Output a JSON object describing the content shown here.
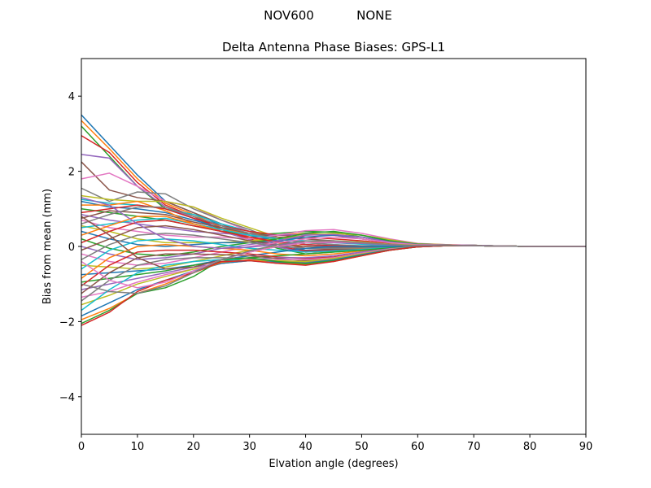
{
  "header": {
    "antenna": "NOV600",
    "radome": "NONE"
  },
  "chart_data": {
    "type": "line",
    "title": "Delta Antenna Phase Biases: GPS-L1",
    "xlabel": "Elvation angle (degrees)",
    "ylabel": "Bias from mean (mm)",
    "xlim": [
      0,
      90
    ],
    "ylim": [
      -5,
      5
    ],
    "xticks": [
      0,
      10,
      20,
      30,
      40,
      50,
      60,
      70,
      80,
      90
    ],
    "yticks": [
      -4,
      -2,
      0,
      2,
      4
    ],
    "ytick_labels": [
      "−4",
      "−2",
      "0",
      "2",
      "4"
    ],
    "grid": false,
    "legend": "none",
    "x": [
      0,
      5,
      10,
      15,
      20,
      25,
      30,
      35,
      40,
      45,
      50,
      55,
      60,
      65,
      70,
      75,
      80,
      85,
      90
    ],
    "colors": [
      "#1f77b4",
      "#ff7f0e",
      "#2ca02c",
      "#d62728",
      "#9467bd",
      "#8c564b",
      "#e377c2",
      "#7f7f7f",
      "#bcbd22",
      "#17becf"
    ],
    "series": [
      {
        "values": [
          3.5,
          2.7,
          1.9,
          1.2,
          0.9,
          0.55,
          0.3,
          0.05,
          -0.1,
          -0.1,
          -0.08,
          -0.03,
          0.0,
          0.02,
          0.02,
          0.01,
          0.0,
          0.0,
          0.0
        ]
      },
      {
        "values": [
          3.35,
          2.6,
          1.8,
          1.15,
          0.85,
          0.5,
          0.25,
          0.0,
          -0.15,
          -0.12,
          -0.08,
          -0.03,
          0.0,
          0.02,
          0.02,
          0.01,
          0.0,
          0.0,
          0.0
        ]
      },
      {
        "values": [
          3.2,
          2.4,
          1.6,
          1.0,
          0.75,
          0.45,
          0.2,
          -0.05,
          -0.2,
          -0.15,
          -0.1,
          -0.04,
          0.0,
          0.02,
          0.02,
          0.01,
          0.0,
          0.0,
          0.0
        ]
      },
      {
        "values": [
          2.95,
          2.5,
          1.7,
          1.1,
          0.8,
          0.45,
          0.2,
          0.0,
          -0.12,
          -0.1,
          -0.07,
          -0.03,
          0.0,
          0.02,
          0.02,
          0.01,
          0.0,
          0.0,
          0.0
        ]
      },
      {
        "values": [
          2.45,
          2.35,
          1.6,
          1.05,
          0.75,
          0.4,
          0.18,
          -0.02,
          -0.15,
          -0.12,
          -0.08,
          -0.03,
          0.0,
          0.02,
          0.02,
          0.01,
          0.0,
          0.0,
          0.0
        ]
      },
      {
        "values": [
          2.25,
          1.5,
          1.3,
          1.2,
          0.9,
          0.6,
          0.3,
          0.1,
          -0.05,
          -0.08,
          -0.06,
          -0.02,
          0.01,
          0.02,
          0.02,
          0.01,
          0.0,
          0.0,
          0.0
        ]
      },
      {
        "values": [
          1.8,
          1.95,
          1.6,
          1.2,
          1.05,
          0.7,
          0.4,
          0.1,
          0.0,
          -0.05,
          -0.05,
          -0.02,
          0.01,
          0.02,
          0.02,
          0.01,
          0.0,
          0.0,
          0.0
        ]
      },
      {
        "values": [
          1.55,
          1.2,
          1.45,
          1.4,
          1.0,
          0.7,
          0.45,
          0.15,
          0.05,
          0.0,
          -0.03,
          -0.01,
          0.01,
          0.02,
          0.02,
          0.01,
          0.0,
          0.0,
          0.0
        ]
      },
      {
        "values": [
          1.35,
          1.25,
          1.2,
          1.2,
          1.05,
          0.75,
          0.5,
          0.25,
          0.1,
          0.05,
          0.0,
          0.0,
          0.02,
          0.03,
          0.02,
          0.01,
          0.0,
          0.0,
          0.0
        ]
      },
      {
        "values": [
          1.25,
          1.15,
          1.1,
          1.0,
          0.85,
          0.6,
          0.4,
          0.2,
          0.1,
          0.05,
          0.0,
          0.0,
          0.02,
          0.03,
          0.02,
          0.01,
          0.0,
          0.0,
          0.0
        ]
      },
      {
        "values": [
          1.2,
          1.05,
          1.0,
          0.9,
          0.7,
          0.5,
          0.3,
          0.15,
          0.05,
          0.0,
          -0.02,
          0.0,
          0.02,
          0.03,
          0.02,
          0.01,
          0.0,
          0.0,
          0.0
        ]
      },
      {
        "values": [
          1.1,
          1.1,
          1.2,
          0.95,
          0.6,
          0.45,
          0.35,
          0.3,
          0.35,
          0.3,
          0.2,
          0.1,
          0.05,
          0.04,
          0.03,
          0.01,
          0.0,
          0.0,
          0.0
        ]
      },
      {
        "values": [
          1.0,
          0.9,
          0.8,
          0.7,
          0.55,
          0.4,
          0.3,
          0.35,
          0.4,
          0.38,
          0.25,
          0.12,
          0.05,
          0.04,
          0.03,
          0.01,
          0.0,
          0.0,
          0.0
        ]
      },
      {
        "values": [
          0.9,
          1.0,
          1.1,
          1.0,
          0.75,
          0.55,
          0.4,
          0.3,
          0.25,
          0.2,
          0.15,
          0.08,
          0.04,
          0.04,
          0.03,
          0.01,
          0.0,
          0.0,
          0.0
        ]
      },
      {
        "values": [
          0.85,
          0.7,
          0.6,
          0.5,
          0.4,
          0.35,
          0.3,
          0.3,
          0.32,
          0.3,
          0.2,
          0.1,
          0.04,
          0.04,
          0.03,
          0.01,
          0.0,
          0.0,
          0.0
        ]
      },
      {
        "values": [
          0.75,
          0.95,
          0.9,
          0.85,
          0.65,
          0.5,
          0.35,
          0.25,
          0.2,
          0.15,
          0.1,
          0.06,
          0.03,
          0.04,
          0.03,
          0.01,
          0.0,
          0.0,
          0.0
        ]
      },
      {
        "values": [
          0.7,
          0.5,
          0.4,
          0.3,
          0.25,
          0.25,
          0.2,
          0.3,
          0.42,
          0.45,
          0.35,
          0.2,
          0.08,
          0.05,
          0.03,
          0.01,
          0.0,
          0.0,
          0.0
        ]
      },
      {
        "values": [
          0.6,
          0.85,
          1.05,
          1.05,
          0.8,
          0.55,
          0.35,
          0.2,
          0.1,
          0.05,
          0.02,
          0.02,
          0.02,
          0.03,
          0.02,
          0.01,
          0.0,
          0.0,
          0.0
        ]
      },
      {
        "values": [
          0.55,
          0.4,
          0.2,
          0.1,
          0.1,
          0.1,
          0.15,
          0.2,
          0.3,
          0.35,
          0.3,
          0.18,
          0.07,
          0.05,
          0.03,
          0.01,
          0.0,
          0.0,
          0.0
        ]
      },
      {
        "values": [
          0.5,
          0.6,
          0.7,
          0.75,
          0.6,
          0.45,
          0.3,
          0.2,
          0.15,
          0.1,
          0.06,
          0.03,
          0.02,
          0.03,
          0.02,
          0.01,
          0.0,
          0.0,
          0.0
        ]
      },
      {
        "values": [
          0.4,
          0.2,
          0.05,
          0.0,
          0.05,
          0.1,
          0.1,
          0.15,
          0.25,
          0.3,
          0.25,
          0.15,
          0.06,
          0.04,
          0.03,
          0.01,
          0.0,
          0.0,
          0.0
        ]
      },
      {
        "values": [
          0.3,
          0.55,
          0.8,
          0.8,
          0.6,
          0.4,
          0.25,
          0.1,
          0.0,
          -0.05,
          -0.05,
          -0.02,
          0.01,
          0.02,
          0.02,
          0.01,
          0.0,
          0.0,
          0.0
        ]
      },
      {
        "values": [
          0.2,
          -0.05,
          -0.2,
          -0.25,
          -0.15,
          0.0,
          0.1,
          0.2,
          0.35,
          0.4,
          0.3,
          0.15,
          0.06,
          0.04,
          0.03,
          0.01,
          0.0,
          0.0,
          0.0
        ]
      },
      {
        "values": [
          0.1,
          0.4,
          0.65,
          0.7,
          0.55,
          0.4,
          0.25,
          0.12,
          0.05,
          0.02,
          0.0,
          0.0,
          0.01,
          0.02,
          0.02,
          0.01,
          0.0,
          0.0,
          0.0
        ]
      },
      {
        "values": [
          0.0,
          -0.2,
          -0.35,
          -0.3,
          -0.2,
          -0.05,
          0.05,
          0.15,
          0.3,
          0.32,
          0.25,
          0.12,
          0.05,
          0.04,
          0.03,
          0.01,
          0.0,
          0.0,
          0.0
        ]
      },
      {
        "values": [
          -0.1,
          0.2,
          0.5,
          0.55,
          0.45,
          0.3,
          0.15,
          0.05,
          0.0,
          -0.02,
          -0.02,
          -0.01,
          0.01,
          0.02,
          0.02,
          0.01,
          0.0,
          0.0,
          0.0
        ]
      },
      {
        "values": [
          -0.2,
          -0.4,
          -0.5,
          -0.45,
          -0.3,
          -0.15,
          0.0,
          0.1,
          0.2,
          0.25,
          0.2,
          0.1,
          0.04,
          0.04,
          0.03,
          0.01,
          0.0,
          0.0,
          0.0
        ]
      },
      {
        "values": [
          -0.35,
          0.05,
          0.3,
          0.35,
          0.3,
          0.2,
          0.1,
          0.0,
          -0.05,
          -0.05,
          -0.04,
          -0.02,
          0.0,
          0.02,
          0.02,
          0.01,
          0.0,
          0.0,
          0.0
        ]
      },
      {
        "values": [
          -0.5,
          -0.55,
          -0.6,
          -0.55,
          -0.4,
          -0.25,
          -0.1,
          0.0,
          0.1,
          0.15,
          0.12,
          0.06,
          0.03,
          0.03,
          0.02,
          0.01,
          0.0,
          0.0,
          0.0
        ]
      },
      {
        "values": [
          -0.6,
          -0.1,
          0.15,
          0.2,
          0.15,
          0.05,
          -0.05,
          -0.1,
          -0.15,
          -0.12,
          -0.08,
          -0.03,
          0.0,
          0.02,
          0.02,
          0.01,
          0.0,
          0.0,
          0.0
        ]
      },
      {
        "values": [
          -0.75,
          -0.7,
          -0.65,
          -0.6,
          -0.5,
          -0.35,
          -0.25,
          -0.15,
          -0.05,
          0.0,
          0.0,
          0.0,
          0.02,
          0.03,
          0.02,
          0.01,
          0.0,
          0.0,
          0.0
        ]
      },
      {
        "values": [
          -0.85,
          -0.3,
          0.0,
          0.05,
          0.0,
          -0.05,
          -0.1,
          -0.2,
          -0.25,
          -0.2,
          -0.12,
          -0.05,
          0.0,
          0.02,
          0.02,
          0.01,
          0.0,
          0.0,
          0.0
        ]
      },
      {
        "values": [
          -0.95,
          -0.85,
          -0.75,
          -0.65,
          -0.5,
          -0.4,
          -0.3,
          -0.25,
          -0.2,
          -0.15,
          -0.1,
          -0.04,
          0.0,
          0.02,
          0.02,
          0.01,
          0.0,
          0.0,
          0.0
        ]
      },
      {
        "values": [
          -1.05,
          -0.5,
          -0.15,
          -0.1,
          -0.1,
          -0.15,
          -0.2,
          -0.28,
          -0.32,
          -0.28,
          -0.18,
          -0.07,
          0.0,
          0.02,
          0.02,
          0.01,
          0.0,
          0.0,
          0.0
        ]
      },
      {
        "values": [
          -1.15,
          -1.0,
          -0.85,
          -0.7,
          -0.55,
          -0.45,
          -0.35,
          -0.3,
          -0.3,
          -0.25,
          -0.15,
          -0.06,
          0.0,
          0.02,
          0.02,
          0.01,
          0.0,
          0.0,
          0.0
        ]
      },
      {
        "values": [
          -1.25,
          -0.7,
          -0.3,
          -0.2,
          -0.2,
          -0.22,
          -0.25,
          -0.32,
          -0.38,
          -0.32,
          -0.2,
          -0.08,
          -0.01,
          0.02,
          0.02,
          0.01,
          0.0,
          0.0,
          0.0
        ]
      },
      {
        "values": [
          -1.35,
          -1.2,
          -0.95,
          -0.75,
          -0.6,
          -0.45,
          -0.38,
          -0.35,
          -0.35,
          -0.3,
          -0.18,
          -0.07,
          0.0,
          0.02,
          0.02,
          0.01,
          0.0,
          0.0,
          0.0
        ]
      },
      {
        "values": [
          -1.45,
          -0.9,
          -0.5,
          -0.35,
          -0.3,
          -0.3,
          -0.32,
          -0.4,
          -0.42,
          -0.35,
          -0.22,
          -0.09,
          -0.01,
          0.02,
          0.02,
          0.01,
          0.0,
          0.0,
          0.0
        ]
      },
      {
        "values": [
          -1.55,
          -1.3,
          -1.0,
          -0.8,
          -0.6,
          -0.45,
          -0.38,
          -0.38,
          -0.4,
          -0.32,
          -0.2,
          -0.08,
          0.0,
          0.02,
          0.02,
          0.01,
          0.0,
          0.0,
          0.0
        ]
      },
      {
        "values": [
          -1.7,
          -1.15,
          -0.7,
          -0.5,
          -0.4,
          -0.35,
          -0.38,
          -0.45,
          -0.45,
          -0.38,
          -0.24,
          -0.1,
          -0.01,
          0.02,
          0.02,
          0.01,
          0.0,
          0.0,
          0.0
        ]
      },
      {
        "values": [
          -1.85,
          -1.5,
          -1.15,
          -0.9,
          -0.65,
          -0.45,
          -0.38,
          -0.42,
          -0.45,
          -0.36,
          -0.22,
          -0.09,
          0.0,
          0.02,
          0.02,
          0.01,
          0.0,
          0.0,
          0.0
        ]
      },
      {
        "values": [
          -1.95,
          -1.65,
          -1.25,
          -1.0,
          -0.7,
          -0.42,
          -0.36,
          -0.45,
          -0.48,
          -0.4,
          -0.25,
          -0.1,
          -0.01,
          0.02,
          0.02,
          0.01,
          0.0,
          0.0,
          0.0
        ]
      },
      {
        "values": [
          -2.05,
          -1.7,
          -1.25,
          -1.1,
          -0.8,
          -0.35,
          -0.3,
          -0.4,
          -0.46,
          -0.38,
          -0.24,
          -0.1,
          -0.01,
          0.02,
          0.02,
          0.01,
          0.0,
          0.0,
          0.0
        ]
      },
      {
        "values": [
          -2.1,
          -1.75,
          -1.2,
          -0.9,
          -0.7,
          -0.4,
          -0.38,
          -0.45,
          -0.5,
          -0.4,
          -0.25,
          -0.1,
          -0.01,
          0.02,
          0.02,
          0.01,
          0.0,
          0.0,
          0.0
        ]
      },
      {
        "values": [
          1.3,
          1.1,
          0.6,
          0.2,
          0.0,
          -0.05,
          -0.02,
          0.05,
          0.1,
          0.1,
          0.08,
          0.04,
          0.02,
          0.03,
          0.02,
          0.01,
          0.0,
          0.0,
          0.0
        ]
      },
      {
        "values": [
          0.8,
          0.3,
          -0.3,
          -0.6,
          -0.55,
          -0.35,
          -0.15,
          0.0,
          0.1,
          0.12,
          0.1,
          0.05,
          0.02,
          0.03,
          0.02,
          0.01,
          0.0,
          0.0,
          0.0
        ]
      },
      {
        "values": [
          -0.4,
          -0.9,
          -1.1,
          -0.95,
          -0.65,
          -0.35,
          -0.15,
          0.0,
          0.1,
          0.12,
          0.1,
          0.05,
          0.02,
          0.03,
          0.02,
          0.01,
          0.0,
          0.0,
          0.0
        ]
      },
      {
        "values": [
          -1.0,
          -1.2,
          -1.25,
          -1.05,
          -0.7,
          -0.35,
          -0.12,
          0.05,
          0.15,
          0.15,
          0.1,
          0.05,
          0.02,
          0.03,
          0.02,
          0.01,
          0.0,
          0.0,
          0.0
        ]
      }
    ]
  }
}
